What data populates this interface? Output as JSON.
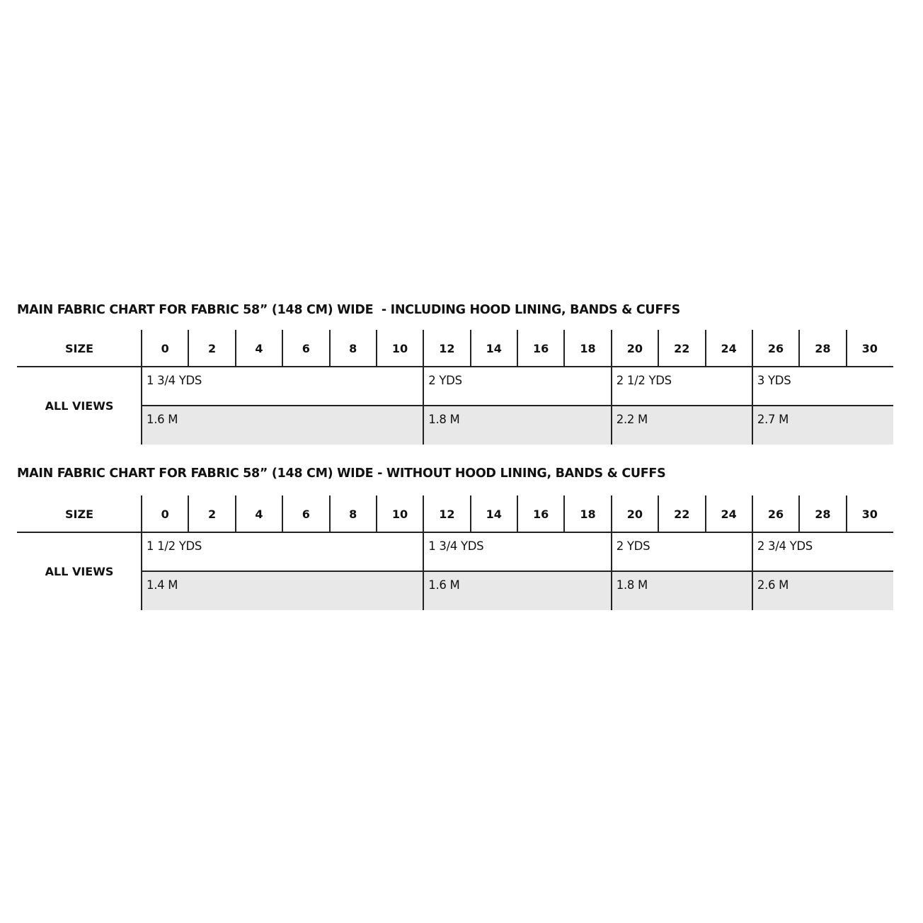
{
  "tables": [
    {
      "title": "MAIN FABRIC CHART FOR FABRIC 58” (148 CM) WIDE  - INCLUDING HOOD LINING, BANDS & CUFFS",
      "size_label": "SIZE",
      "row_label": "ALL VIEWS",
      "sizes": [
        "0",
        "2",
        "4",
        "6",
        "8",
        "10",
        "12",
        "14",
        "16",
        "18",
        "20",
        "22",
        "24",
        "26",
        "28",
        "30"
      ],
      "groups": [
        {
          "sizes": [
            "0",
            "2",
            "4",
            "6",
            "8",
            "10"
          ],
          "yards": "1 3/4 YDS",
          "meters": "1.6 M"
        },
        {
          "sizes": [
            "12",
            "14",
            "16",
            "18"
          ],
          "yards": "2 YDS",
          "meters": "1.8 M"
        },
        {
          "sizes": [
            "20",
            "22",
            "24"
          ],
          "yards": "2 1/2 YDS",
          "meters": "2.2 M"
        },
        {
          "sizes": [
            "26",
            "28",
            "30"
          ],
          "yards": "3 YDS",
          "meters": "2.7 M"
        }
      ]
    },
    {
      "title": "MAIN FABRIC CHART FOR FABRIC 58” (148 CM) WIDE - WITHOUT HOOD LINING, BANDS & CUFFS",
      "size_label": "SIZE",
      "row_label": "ALL VIEWS",
      "sizes": [
        "0",
        "2",
        "4",
        "6",
        "8",
        "10",
        "12",
        "14",
        "16",
        "18",
        "20",
        "22",
        "24",
        "26",
        "28",
        "30"
      ],
      "groups": [
        {
          "sizes": [
            "0",
            "2",
            "4",
            "6",
            "8",
            "10"
          ],
          "yards": "1 1/2 YDS",
          "meters": "1.4 M"
        },
        {
          "sizes": [
            "12",
            "14",
            "16",
            "18"
          ],
          "yards": "1 3/4 YDS",
          "meters": "1.6 M"
        },
        {
          "sizes": [
            "20",
            "22",
            "24"
          ],
          "yards": "2 YDS",
          "meters": "1.8 M"
        },
        {
          "sizes": [
            "26",
            "28",
            "30"
          ],
          "yards": "2 3/4 YDS",
          "meters": "2.6 M"
        }
      ]
    }
  ],
  "colors": {
    "meters_row_bg": "#e8e8e8",
    "lines": "#222222"
  }
}
